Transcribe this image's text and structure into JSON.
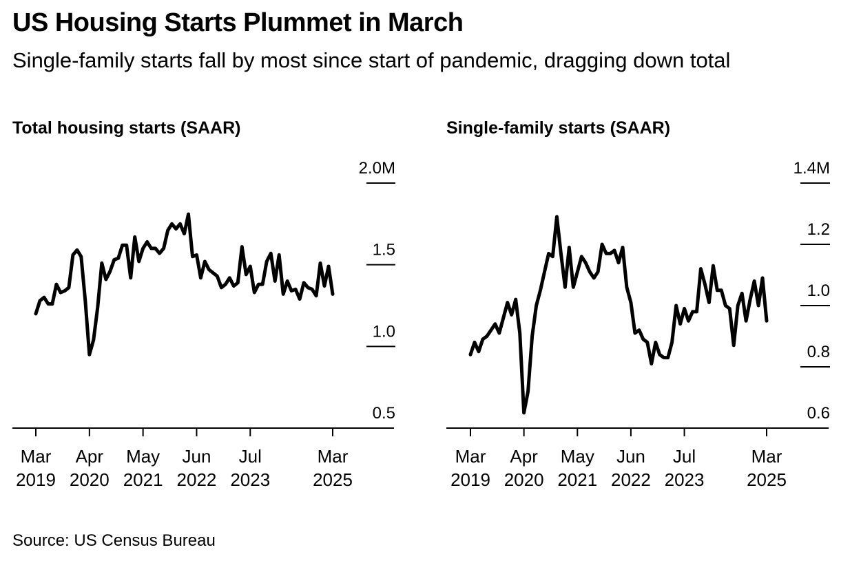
{
  "title": "US Housing Starts Plummet in March",
  "subtitle": "Single-family starts fall by most since start of pandemic, dragging down total",
  "source": "Source: US Census Bureau",
  "chart_data": [
    {
      "type": "line",
      "title": "Total housing starts (SAAR)",
      "unit": "M",
      "ylim": [
        0.5,
        2.0
      ],
      "yticks": [
        {
          "value": 2.0,
          "label": "2.0M"
        },
        {
          "value": 1.5,
          "label": "1.5"
        },
        {
          "value": 1.0,
          "label": "1.0"
        },
        {
          "value": 0.5,
          "label": "0.5"
        }
      ],
      "xlim": [
        "2019-03",
        "2025-03"
      ],
      "xticks": [
        {
          "month": "Mar",
          "year": "2019",
          "date": "2019-03"
        },
        {
          "month": "Apr",
          "year": "2020",
          "date": "2020-04"
        },
        {
          "month": "May",
          "year": "2021",
          "date": "2021-05"
        },
        {
          "month": "Jun",
          "year": "2022",
          "date": "2022-06"
        },
        {
          "month": "Jul",
          "year": "2023",
          "date": "2023-07"
        },
        {
          "month": "Mar",
          "year": "2025",
          "date": "2025-03"
        }
      ],
      "grid": false,
      "series": [
        {
          "start": "2019-03",
          "values": [
            1.2,
            1.28,
            1.3,
            1.26,
            1.26,
            1.38,
            1.33,
            1.34,
            1.36,
            1.56,
            1.59,
            1.55,
            1.28,
            0.95,
            1.04,
            1.24,
            1.51,
            1.41,
            1.46,
            1.53,
            1.54,
            1.62,
            1.62,
            1.42,
            1.67,
            1.52,
            1.6,
            1.64,
            1.6,
            1.6,
            1.57,
            1.6,
            1.71,
            1.75,
            1.72,
            1.75,
            1.69,
            1.81,
            1.55,
            1.56,
            1.42,
            1.52,
            1.47,
            1.45,
            1.43,
            1.36,
            1.38,
            1.42,
            1.37,
            1.39,
            1.61,
            1.44,
            1.49,
            1.33,
            1.38,
            1.38,
            1.52,
            1.57,
            1.4,
            1.56,
            1.32,
            1.4,
            1.34,
            1.35,
            1.29,
            1.39,
            1.36,
            1.35,
            1.31,
            1.51,
            1.37,
            1.49,
            1.32
          ]
        }
      ]
    },
    {
      "type": "line",
      "title": "Single-family starts (SAAR)",
      "unit": "M",
      "ylim": [
        0.6,
        1.4
      ],
      "yticks": [
        {
          "value": 1.4,
          "label": "1.4M"
        },
        {
          "value": 1.2,
          "label": "1.2"
        },
        {
          "value": 1.0,
          "label": "1.0"
        },
        {
          "value": 0.8,
          "label": "0.8"
        },
        {
          "value": 0.6,
          "label": "0.6"
        }
      ],
      "xlim": [
        "2019-03",
        "2025-03"
      ],
      "xticks": [
        {
          "month": "Mar",
          "year": "2019",
          "date": "2019-03"
        },
        {
          "month": "Apr",
          "year": "2020",
          "date": "2020-04"
        },
        {
          "month": "May",
          "year": "2021",
          "date": "2021-05"
        },
        {
          "month": "Jun",
          "year": "2022",
          "date": "2022-06"
        },
        {
          "month": "Jul",
          "year": "2023",
          "date": "2023-07"
        },
        {
          "month": "Mar",
          "year": "2025",
          "date": "2025-03"
        }
      ],
      "grid": false,
      "series": [
        {
          "start": "2019-03",
          "values": [
            0.84,
            0.88,
            0.85,
            0.89,
            0.9,
            0.92,
            0.94,
            0.91,
            0.96,
            1.01,
            0.97,
            1.02,
            0.91,
            0.65,
            0.72,
            0.9,
            1.0,
            1.05,
            1.11,
            1.17,
            1.16,
            1.29,
            1.17,
            1.06,
            1.19,
            1.06,
            1.11,
            1.16,
            1.14,
            1.11,
            1.09,
            1.11,
            1.2,
            1.17,
            1.17,
            1.18,
            1.14,
            1.19,
            1.06,
            1.01,
            0.91,
            0.92,
            0.89,
            0.88,
            0.81,
            0.88,
            0.84,
            0.83,
            0.83,
            0.88,
            1.0,
            0.94,
            0.99,
            0.95,
            0.98,
            0.98,
            1.12,
            1.07,
            1.01,
            1.13,
            1.05,
            1.05,
            1.0,
            0.99,
            0.87,
            1.0,
            1.04,
            0.95,
            1.02,
            1.08,
            1.0,
            1.09,
            0.95
          ]
        }
      ]
    }
  ]
}
